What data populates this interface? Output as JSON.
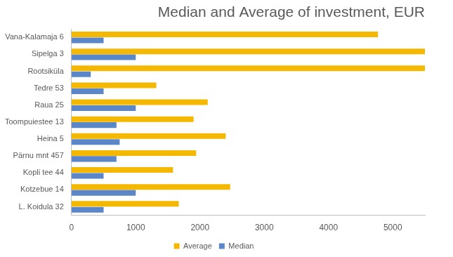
{
  "chart_data": {
    "type": "bar",
    "orientation": "horizontal",
    "title": "Median and Average of investment, EUR",
    "categories": [
      "Vana-Kalamaja 6",
      "Sipelga 3",
      "Rootsiküla",
      "Tedre 53",
      "Raua 25",
      "Toompuiestee 13",
      "Heina 5",
      "Pärnu mnt 457",
      "Kopli tee 44",
      "Kotzebue 14",
      "L. Koidula 32"
    ],
    "series": [
      {
        "name": "Average",
        "color": "#f5b800",
        "values": [
          4770,
          5500,
          5500,
          1320,
          2120,
          1900,
          2400,
          1940,
          1580,
          2470,
          1670
        ]
      },
      {
        "name": "Median",
        "color": "#5b86c8",
        "values": [
          500,
          1000,
          300,
          500,
          1000,
          700,
          750,
          700,
          500,
          1000,
          500
        ]
      }
    ],
    "xlim": [
      0,
      5500
    ],
    "xticks": [
      0,
      1000,
      2000,
      3000,
      4000,
      5000
    ],
    "grid": false,
    "legend": "bottom"
  }
}
